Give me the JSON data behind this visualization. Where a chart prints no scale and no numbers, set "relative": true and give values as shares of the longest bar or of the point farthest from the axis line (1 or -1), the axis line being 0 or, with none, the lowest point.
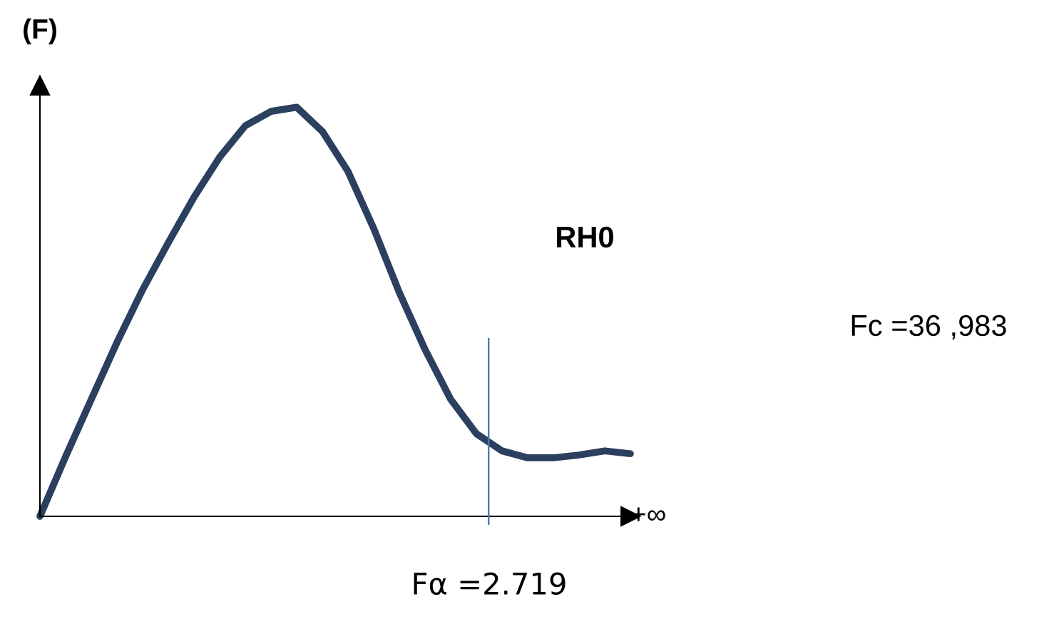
{
  "chart_data": {
    "type": "line",
    "relative": true,
    "ylabel": "(F)",
    "xlabel": "+∞",
    "categories": [
      null,
      null,
      null,
      null,
      null,
      null,
      null,
      null,
      null,
      null,
      null,
      null,
      null,
      null,
      null,
      null,
      null,
      null,
      null,
      null,
      null,
      null,
      null,
      null
    ],
    "series": [
      {
        "color": "#2b3f5e",
        "values": [
          0,
          0.146,
          0.286,
          0.425,
          0.554,
          0.669,
          0.78,
          0.878,
          0.955,
          0.99,
          1,
          0.941,
          0.843,
          0.704,
          0.547,
          0.408,
          0.286,
          0.202,
          0.16,
          0.143,
          0.143,
          0.15,
          0.16,
          0.153
        ]
      }
    ],
    "annotations": [
      "RH0",
      "Fc =36 ,983",
      "Fα =2.719"
    ],
    "marker": "none",
    "line_style": "solid",
    "grid": false
  }
}
